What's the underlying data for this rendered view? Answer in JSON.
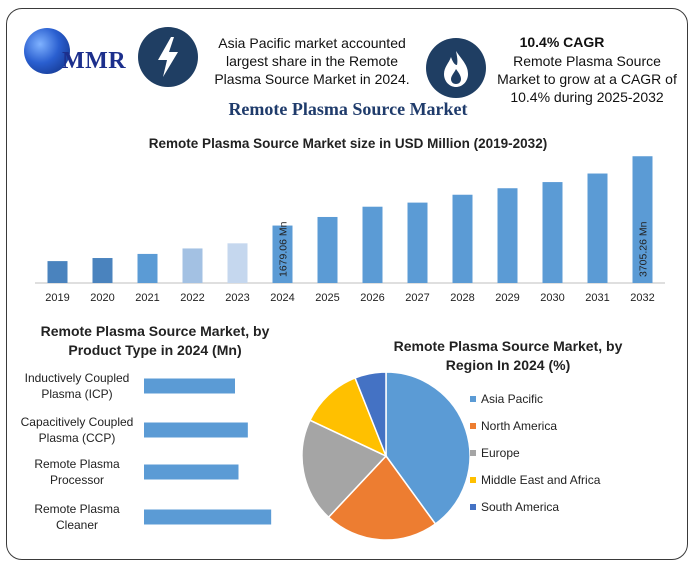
{
  "header": {
    "logo_text": "MMR",
    "insight_left": "Asia Pacific market accounted largest share in the Remote Plasma Source Market in 2024.",
    "cagr_title": "10.4% CAGR",
    "insight_right": "Remote Plasma Source Market to grow at a CAGR of 10.4% during 2025-2032",
    "icon_left": "lightning-icon",
    "icon_right": "flame-icon"
  },
  "main_title": "Remote Plasma Source Market",
  "colors": {
    "bar_main": "#5b9bd5",
    "bar_dark": "#4a83be",
    "bar_light": "#a3c1e3",
    "bar_lighter": "#c5d7ee",
    "header_icon_bg": "#1f3e63"
  },
  "chart_data": [
    {
      "type": "bar",
      "title": "Remote Plasma Source Market size in USD Million (2019-2032)",
      "categories": [
        "2019",
        "2020",
        "2021",
        "2022",
        "2023",
        "2024",
        "2025",
        "2026",
        "2027",
        "2028",
        "2029",
        "2030",
        "2031",
        "2032"
      ],
      "values": [
        640,
        730,
        850,
        1010,
        1160,
        1679.06,
        1930,
        2230,
        2350,
        2580,
        2770,
        2950,
        3200,
        3705.26
      ],
      "annotations": [
        {
          "category": "2024",
          "text": "1679.06 Mn"
        },
        {
          "category": "2032",
          "text": "3705.26 Mn"
        }
      ],
      "ylim": [
        0,
        3800
      ],
      "grid": false
    },
    {
      "type": "bar",
      "orientation": "horizontal",
      "title": "Remote Plasma Source Market, by Product Type in 2024 (Mn)",
      "categories": [
        "Inductively Coupled Plasma (ICP)",
        "Capacitively Coupled Plasma (CCP)",
        "Remote Plasma Processor",
        "Remote Plasma Cleaner"
      ],
      "values": [
        390,
        445,
        405,
        545
      ],
      "xlim": [
        0,
        600
      ]
    },
    {
      "type": "pie",
      "title": "Remote Plasma Source Market, by Region In 2024 (%)",
      "labels": [
        "Asia Pacific",
        "North America",
        "Europe",
        "Middle East and Africa",
        "South America"
      ],
      "values": [
        40,
        22,
        20,
        12,
        6
      ],
      "colors": [
        "#5b9bd5",
        "#ed7d31",
        "#a5a5a5",
        "#ffc000",
        "#4472c4"
      ],
      "legend_position": "right"
    }
  ]
}
